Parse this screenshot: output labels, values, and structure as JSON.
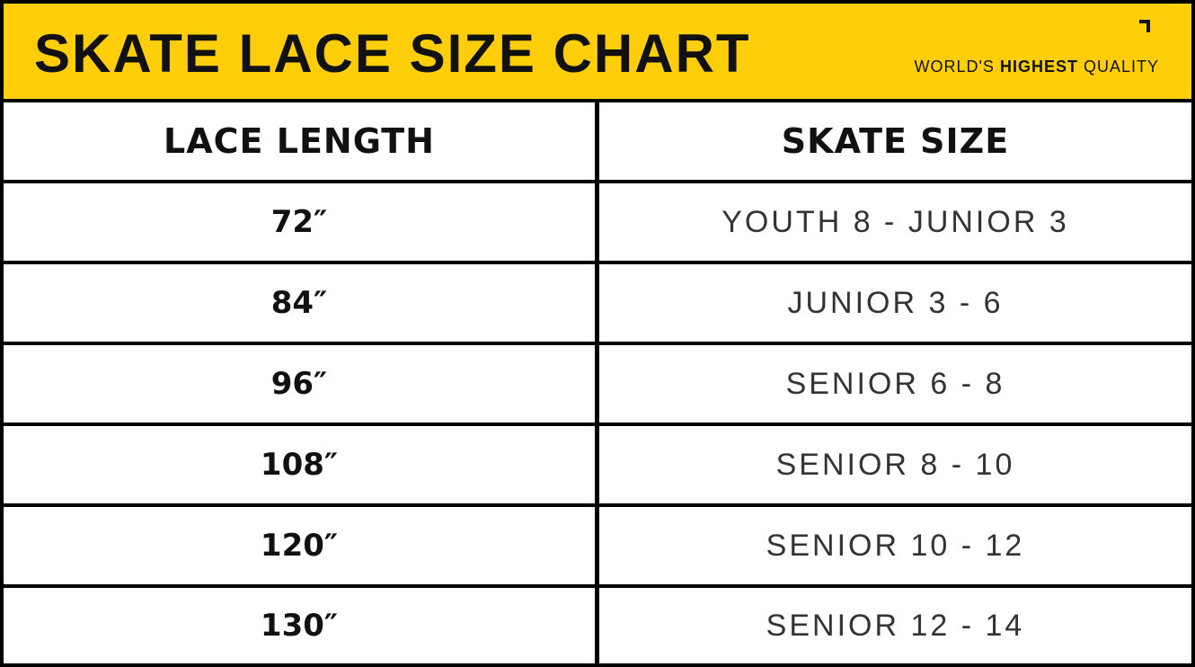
{
  "title": "SKATE LACE SIZE CHART",
  "tagline": {
    "prefix": "WORLD'S ",
    "bold": "HIGHEST",
    "suffix": " QUALITY"
  },
  "colors": {
    "banner": "#FFCE0B",
    "border": "#000000",
    "cell": "#FFFFFF"
  },
  "chart_data": {
    "type": "table",
    "title": "SKATE LACE SIZE CHART",
    "columns": [
      "LACE LENGTH",
      "SKATE SIZE"
    ],
    "rows": [
      [
        "72″",
        "YOUTH 8 - JUNIOR 3"
      ],
      [
        "84″",
        "JUNIOR 3 - 6"
      ],
      [
        "96″",
        "SENIOR 6 - 8"
      ],
      [
        "108″",
        "SENIOR 8 - 10"
      ],
      [
        "120″",
        "SENIOR 10 - 12"
      ],
      [
        "130″",
        "SENIOR 12 - 14"
      ]
    ]
  }
}
